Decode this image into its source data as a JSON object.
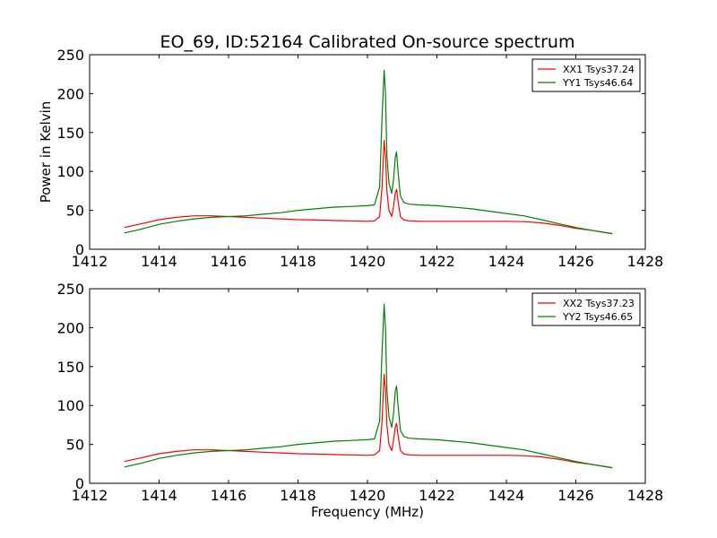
{
  "figure": {
    "title": "EO_69, ID:52164 Calibrated On-source spectrum",
    "colors": {
      "xx": "#ff0000",
      "yy": "#008000"
    }
  },
  "chart_data": [
    {
      "type": "line",
      "title": "EO_69, ID:52164 Calibrated On-source spectrum",
      "xlabel": "",
      "ylabel": "Power in Kelvin",
      "xlim": [
        1412,
        1428
      ],
      "ylim": [
        0,
        250
      ],
      "xticks": [
        "1412",
        "1414",
        "1416",
        "1418",
        "1420",
        "1422",
        "1424",
        "1426",
        "1428"
      ],
      "yticks": [
        "0",
        "50",
        "100",
        "150",
        "200",
        "250"
      ],
      "grid": false,
      "legend": "top-right",
      "series": [
        {
          "name": "XX1 Tsys37.24",
          "color": "#ff0000",
          "x": [
            1413.0,
            1413.5,
            1414.0,
            1414.5,
            1415.0,
            1415.5,
            1416.0,
            1416.5,
            1417.0,
            1417.5,
            1418.0,
            1418.5,
            1419.0,
            1419.5,
            1420.0,
            1420.2,
            1420.35,
            1420.42,
            1420.48,
            1420.52,
            1420.56,
            1420.62,
            1420.7,
            1420.75,
            1420.8,
            1420.84,
            1420.88,
            1420.95,
            1421.05,
            1421.2,
            1421.5,
            1422.0,
            1422.5,
            1423.0,
            1423.5,
            1424.0,
            1424.5,
            1425.0,
            1425.5,
            1426.0,
            1426.5,
            1427.05
          ],
          "y": [
            28,
            33,
            38,
            41,
            43,
            43,
            42,
            41,
            40,
            39,
            38,
            37.5,
            37,
            36.5,
            36,
            36.5,
            42,
            80,
            140,
            120,
            75,
            50,
            42,
            55,
            72,
            77,
            62,
            42,
            37.5,
            36.5,
            36,
            36,
            36,
            36,
            36,
            36,
            35.5,
            34,
            31,
            27,
            24,
            20
          ]
        },
        {
          "name": "YY1 Tsys46.64",
          "color": "#008000",
          "x": [
            1413.0,
            1413.5,
            1414.0,
            1414.5,
            1415.0,
            1415.5,
            1416.0,
            1416.5,
            1417.0,
            1417.5,
            1418.0,
            1418.5,
            1419.0,
            1419.5,
            1420.0,
            1420.2,
            1420.35,
            1420.42,
            1420.48,
            1420.52,
            1420.56,
            1420.62,
            1420.7,
            1420.75,
            1420.8,
            1420.84,
            1420.88,
            1420.95,
            1421.05,
            1421.2,
            1421.5,
            1422.0,
            1422.5,
            1423.0,
            1423.5,
            1424.0,
            1424.5,
            1425.0,
            1425.5,
            1426.0,
            1426.5,
            1427.05
          ],
          "y": [
            21,
            26,
            32,
            36,
            39,
            41,
            42,
            43,
            45,
            47,
            50,
            52,
            54,
            55,
            56,
            57,
            80,
            170,
            230,
            200,
            120,
            85,
            72,
            90,
            118,
            125,
            100,
            68,
            60,
            58,
            57,
            56,
            54,
            52,
            49,
            46,
            43,
            38,
            33,
            28,
            24,
            20
          ]
        }
      ]
    },
    {
      "type": "line",
      "title": "",
      "xlabel": "Frequency (MHz)",
      "ylabel": "",
      "xlim": [
        1412,
        1428
      ],
      "ylim": [
        0,
        250
      ],
      "xticks": [
        "1412",
        "1414",
        "1416",
        "1418",
        "1420",
        "1422",
        "1424",
        "1426",
        "1428"
      ],
      "yticks": [
        "0",
        "50",
        "100",
        "150",
        "200",
        "250"
      ],
      "grid": false,
      "legend": "top-right",
      "series": [
        {
          "name": "XX2 Tsys37.23",
          "color": "#ff0000",
          "x": [
            1413.0,
            1413.5,
            1414.0,
            1414.5,
            1415.0,
            1415.5,
            1416.0,
            1416.5,
            1417.0,
            1417.5,
            1418.0,
            1418.5,
            1419.0,
            1419.5,
            1420.0,
            1420.2,
            1420.35,
            1420.42,
            1420.48,
            1420.52,
            1420.56,
            1420.62,
            1420.7,
            1420.75,
            1420.8,
            1420.84,
            1420.88,
            1420.95,
            1421.05,
            1421.2,
            1421.5,
            1422.0,
            1422.5,
            1423.0,
            1423.5,
            1424.0,
            1424.5,
            1425.0,
            1425.5,
            1426.0,
            1426.5,
            1427.05
          ],
          "y": [
            28,
            33,
            38,
            41,
            43,
            43,
            42,
            41,
            40,
            39,
            38,
            37.5,
            37,
            36.5,
            36,
            36.5,
            42,
            80,
            140,
            120,
            75,
            50,
            42,
            55,
            72,
            77,
            62,
            42,
            37.5,
            36.5,
            36,
            36,
            36,
            36,
            36,
            36,
            35.5,
            34,
            31,
            27,
            24,
            20
          ]
        },
        {
          "name": "YY2 Tsys46.65",
          "color": "#008000",
          "x": [
            1413.0,
            1413.5,
            1414.0,
            1414.5,
            1415.0,
            1415.5,
            1416.0,
            1416.5,
            1417.0,
            1417.5,
            1418.0,
            1418.5,
            1419.0,
            1419.5,
            1420.0,
            1420.2,
            1420.35,
            1420.42,
            1420.48,
            1420.52,
            1420.56,
            1420.62,
            1420.7,
            1420.75,
            1420.8,
            1420.84,
            1420.88,
            1420.95,
            1421.05,
            1421.2,
            1421.5,
            1422.0,
            1422.5,
            1423.0,
            1423.5,
            1424.0,
            1424.5,
            1425.0,
            1425.5,
            1426.0,
            1426.5,
            1427.05
          ],
          "y": [
            21,
            26,
            32,
            36,
            39,
            41,
            42,
            43,
            45,
            47,
            50,
            52,
            54,
            55,
            56,
            57,
            80,
            170,
            230,
            200,
            120,
            85,
            72,
            90,
            118,
            125,
            100,
            68,
            60,
            58,
            57,
            56,
            54,
            52,
            49,
            46,
            43,
            38,
            33,
            28,
            24,
            20
          ]
        }
      ]
    }
  ]
}
